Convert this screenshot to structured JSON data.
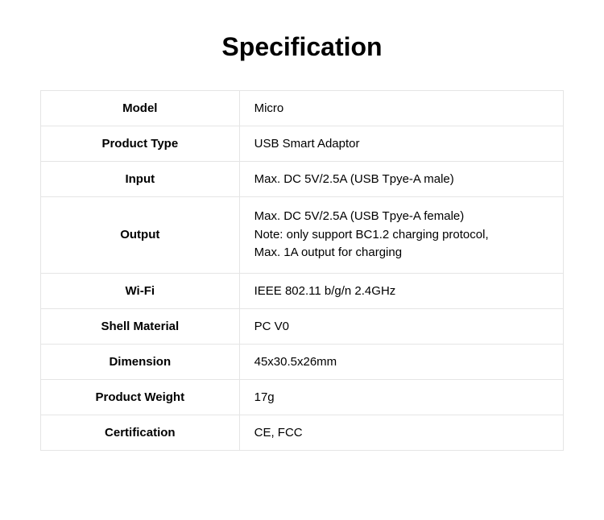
{
  "title": "Specification",
  "table": {
    "columns": [
      "label",
      "value"
    ],
    "rows": [
      {
        "label": "Model",
        "value": "Micro"
      },
      {
        "label": "Product Type",
        "value": "USB Smart Adaptor"
      },
      {
        "label": "Input",
        "value": "Max. DC 5V/2.5A (USB Tpye-A male)"
      },
      {
        "label": "Output",
        "value_lines": [
          "Max. DC 5V/2.5A (USB Tpye-A female)",
          "Note: only support BC1.2 charging protocol,",
          "Max. 1A output for charging"
        ]
      },
      {
        "label": "Wi-Fi",
        "value": "IEEE 802.11 b/g/n 2.4GHz"
      },
      {
        "label": "Shell Material",
        "value": "PC V0"
      },
      {
        "label": "Dimension",
        "value": "45x30.5x26mm"
      },
      {
        "label": "Product Weight",
        "value": "17g"
      },
      {
        "label": "Certification",
        "value": "CE, FCC"
      }
    ]
  },
  "styles": {
    "title_fontsize": 32,
    "title_fontweight": "bold",
    "title_color": "#000000",
    "cell_fontsize": 15,
    "label_fontweight": "bold",
    "value_fontweight": "normal",
    "border_color": "#e5e5e5",
    "background_color": "#ffffff",
    "label_col_width_pct": 38,
    "value_col_width_pct": 62,
    "label_align": "center",
    "value_align": "left"
  }
}
